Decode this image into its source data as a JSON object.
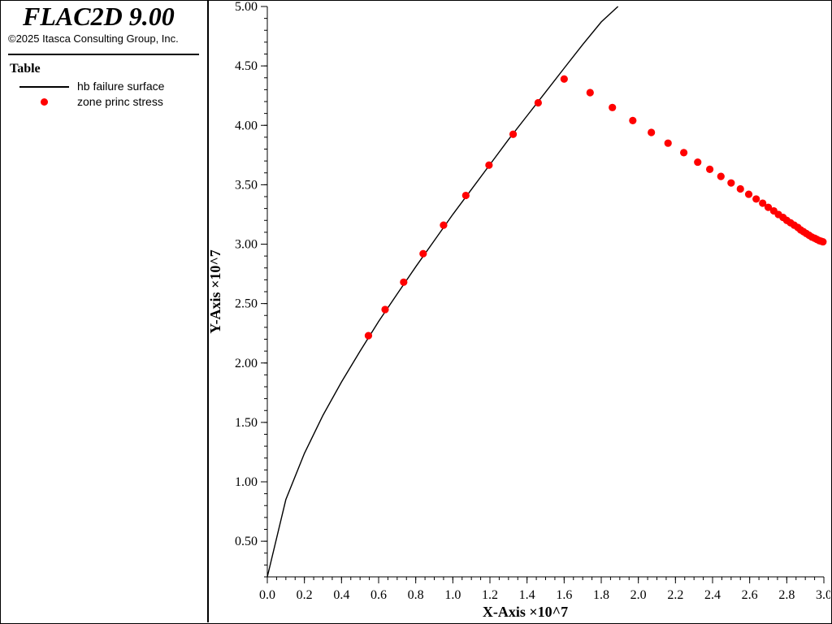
{
  "app": {
    "title": "FLAC2D 9.00",
    "copyright": "©2025 Itasca Consulting Group, Inc."
  },
  "legend": {
    "heading": "Table",
    "items": [
      {
        "label": "hb failure surface",
        "kind": "line",
        "color": "#000000"
      },
      {
        "label": "zone princ stress",
        "kind": "marker",
        "color": "#ff0000"
      }
    ]
  },
  "chart_data": {
    "type": "scatter",
    "title": "",
    "xlabel": "X-Axis ×10^7",
    "ylabel": "Y-Axis ×10^7",
    "xlim": [
      0.0,
      3.0
    ],
    "ylim": [
      0.2,
      5.0
    ],
    "x_ticks": [
      "0.0",
      "0.2",
      "0.4",
      "0.6",
      "0.8",
      "1.0",
      "1.2",
      "1.4",
      "1.6",
      "1.8",
      "2.0",
      "2.2",
      "2.4",
      "2.6",
      "2.8",
      "3.0"
    ],
    "y_ticks": [
      "0.50",
      "1.00",
      "1.50",
      "2.00",
      "2.50",
      "3.00",
      "3.50",
      "4.00",
      "4.50",
      "5.00"
    ],
    "series": [
      {
        "name": "hb failure surface",
        "kind": "line",
        "color": "#000000",
        "x": [
          0.0,
          0.1,
          0.2,
          0.3,
          0.4,
          0.5,
          0.6,
          0.7,
          0.8,
          0.9,
          1.0,
          1.1,
          1.2,
          1.3,
          1.4,
          1.5,
          1.6,
          1.7,
          1.8,
          1.89
        ],
        "y": [
          0.2,
          0.85,
          1.24,
          1.56,
          1.84,
          2.1,
          2.35,
          2.58,
          2.81,
          3.03,
          3.25,
          3.46,
          3.67,
          3.88,
          4.08,
          4.28,
          4.48,
          4.68,
          4.87,
          5.0
        ]
      },
      {
        "name": "zone princ stress",
        "kind": "marker",
        "color": "#ff0000",
        "x": [
          0.545,
          0.635,
          0.735,
          0.84,
          0.95,
          1.07,
          1.195,
          1.325,
          1.46,
          1.6,
          1.74,
          1.86,
          1.97,
          2.07,
          2.16,
          2.245,
          2.32,
          2.385,
          2.445,
          2.5,
          2.55,
          2.595,
          2.635,
          2.67,
          2.7,
          2.73,
          2.755,
          2.78,
          2.8,
          2.82,
          2.84,
          2.86,
          2.875,
          2.89,
          2.905,
          2.92,
          2.935,
          2.95,
          2.962,
          2.975,
          2.985,
          2.995
        ],
        "y": [
          2.23,
          2.45,
          2.68,
          2.92,
          3.16,
          3.41,
          3.665,
          3.925,
          4.19,
          4.39,
          4.275,
          4.15,
          4.04,
          3.94,
          3.85,
          3.77,
          3.69,
          3.63,
          3.57,
          3.515,
          3.465,
          3.42,
          3.38,
          3.345,
          3.31,
          3.28,
          3.25,
          3.225,
          3.2,
          3.18,
          3.16,
          3.14,
          3.12,
          3.105,
          3.09,
          3.075,
          3.06,
          3.05,
          3.04,
          3.03,
          3.025,
          3.02
        ]
      }
    ]
  }
}
